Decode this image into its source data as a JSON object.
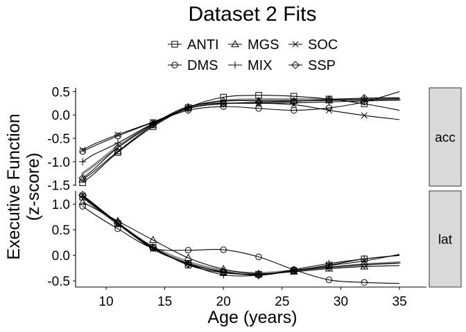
{
  "chart_data": {
    "type": "line",
    "title": "Dataset 2 Fits",
    "xlabel": "Age (years)",
    "ylabel_lines": [
      "Executive Function",
      "(z-score)"
    ],
    "x_ticks": [
      10,
      15,
      20,
      25,
      30,
      35
    ],
    "xlim": [
      7.4,
      37.3
    ],
    "legend_position": "top",
    "legend": [
      {
        "name": "ANTI",
        "marker": "square"
      },
      {
        "name": "MGS",
        "marker": "triangle"
      },
      {
        "name": "SOC",
        "marker": "x"
      },
      {
        "name": "DMS",
        "marker": "circle"
      },
      {
        "name": "MIX",
        "marker": "plus"
      },
      {
        "name": "SSP",
        "marker": "diamond"
      }
    ],
    "colors": {
      "series": "#000000",
      "mean_fit": "#8c8c8c",
      "strip_fill": "#d9d9d9",
      "strip_border": "#333333"
    },
    "panels": [
      {
        "strip": "acc",
        "y_ticks": [
          0.5,
          0.0,
          -0.5,
          -1.0,
          -1.5
        ],
        "y_tick_labels": [
          "0.5",
          "0.0",
          "-0.5",
          "-1.0",
          "-1.5"
        ],
        "ylim": [
          -1.52,
          0.58
        ],
        "x": [
          8,
          9,
          11,
          14,
          17,
          20,
          23,
          26,
          29,
          32,
          35
        ],
        "series": [
          {
            "name": "ANTI",
            "values": [
              -1.45,
              -1.25,
              -0.8,
              -0.25,
              0.16,
              0.38,
              0.42,
              0.4,
              0.34,
              0.24,
              0.1
            ]
          },
          {
            "name": "MGS",
            "values": [
              -1.38,
              -1.2,
              -0.78,
              -0.22,
              0.16,
              0.3,
              0.3,
              0.3,
              0.31,
              0.33,
              0.35
            ]
          },
          {
            "name": "SOC",
            "values": [
              -0.75,
              -0.62,
              -0.42,
              -0.15,
              0.14,
              0.24,
              0.25,
              0.22,
              0.1,
              -0.01,
              -0.1
            ]
          },
          {
            "name": "DMS",
            "values": [
              -0.78,
              -0.66,
              -0.45,
              -0.16,
              0.1,
              0.18,
              0.14,
              0.1,
              0.15,
              0.28,
              0.5
            ]
          },
          {
            "name": "MIX",
            "values": [
              -1.0,
              -0.84,
              -0.6,
              -0.18,
              0.18,
              0.25,
              0.25,
              0.26,
              0.28,
              0.3,
              0.32
            ]
          },
          {
            "name": "SSP",
            "values": [
              -1.35,
              -1.15,
              -0.7,
              -0.2,
              0.14,
              0.24,
              0.27,
              0.29,
              0.33,
              0.36,
              0.37
            ]
          }
        ],
        "mean_fit": [
          -1.25,
          -1.07,
          -0.68,
          -0.2,
          0.15,
          0.3,
          0.33,
          0.33,
          0.33,
          0.33,
          0.33
        ]
      },
      {
        "strip": "lat",
        "y_ticks": [
          1.0,
          0.5,
          0.0,
          -0.5
        ],
        "y_tick_labels": [
          "1.0",
          "0.5",
          "0.0",
          "-0.5"
        ],
        "ylim": [
          -0.62,
          1.26
        ],
        "x": [
          8,
          9,
          11,
          14,
          17,
          20,
          23,
          26,
          29,
          32,
          35
        ],
        "series": [
          {
            "name": "ANTI",
            "values": [
              1.14,
              0.96,
              0.62,
              0.16,
              -0.19,
              -0.34,
              -0.37,
              -0.3,
              -0.19,
              -0.07,
              0.0
            ]
          },
          {
            "name": "MGS",
            "values": [
              1.04,
              0.92,
              0.67,
              0.3,
              -0.05,
              -0.27,
              -0.36,
              -0.32,
              -0.26,
              -0.22,
              -0.2
            ]
          },
          {
            "name": "SOC",
            "values": [
              1.17,
              0.98,
              0.62,
              0.12,
              -0.16,
              -0.33,
              -0.38,
              -0.3,
              -0.2,
              -0.11,
              0.02
            ]
          },
          {
            "name": "DMS",
            "values": [
              0.96,
              0.8,
              0.52,
              0.14,
              0.1,
              0.11,
              -0.03,
              -0.28,
              -0.48,
              -0.53,
              -0.55
            ]
          },
          {
            "name": "MIX",
            "values": [
              1.16,
              0.98,
              0.62,
              0.14,
              -0.17,
              -0.38,
              -0.39,
              -0.28,
              -0.16,
              -0.07,
              0.0
            ]
          },
          {
            "name": "SSP",
            "values": [
              1.18,
              1.0,
              0.64,
              0.15,
              -0.17,
              -0.32,
              -0.39,
              -0.3,
              -0.23,
              -0.18,
              -0.15
            ]
          }
        ],
        "mean_fit": [
          1.14,
          0.96,
          0.62,
          0.16,
          -0.13,
          -0.3,
          -0.35,
          -0.3,
          -0.24,
          -0.18,
          -0.14
        ]
      }
    ]
  }
}
